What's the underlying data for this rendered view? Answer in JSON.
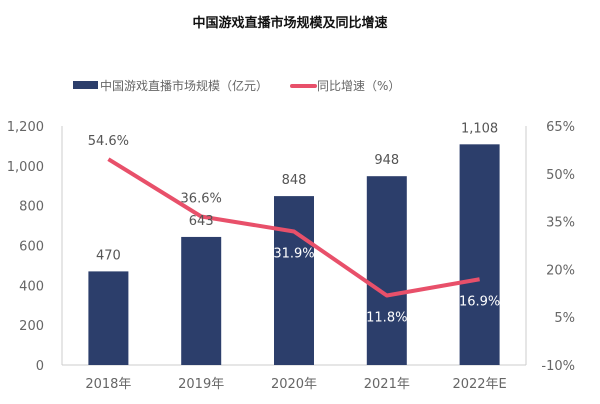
{
  "chart_data": {
    "type": "bar+line",
    "title": "中国游戏直播市场规模及同比增速",
    "categories": [
      "2018年",
      "2019年",
      "2020年",
      "2021年",
      "2022年E"
    ],
    "series": [
      {
        "name": "中国游戏直播市场规模（亿元）",
        "type": "bar",
        "axis": "left",
        "values": [
          470,
          643,
          848,
          948,
          1108
        ],
        "labels": [
          "470",
          "643",
          "848",
          "948",
          "1,108"
        ],
        "color": "#2c3e6b"
      },
      {
        "name": "同比增速（%）",
        "type": "line",
        "axis": "right",
        "values": [
          54.6,
          36.6,
          31.9,
          11.8,
          16.9
        ],
        "labels": [
          "54.6%",
          "36.6%",
          "31.9%",
          "11.8%",
          "16.9%"
        ],
        "color": "#e8506a"
      }
    ],
    "y_left": {
      "range": [
        0,
        1200
      ],
      "ticks": [
        "0",
        "200",
        "400",
        "600",
        "800",
        "1,000",
        "1,200"
      ]
    },
    "y_right": {
      "range": [
        -10,
        65
      ],
      "ticks": [
        "-10%",
        "5%",
        "20%",
        "35%",
        "50%",
        "65%"
      ]
    },
    "grid": false,
    "legend": "top"
  }
}
